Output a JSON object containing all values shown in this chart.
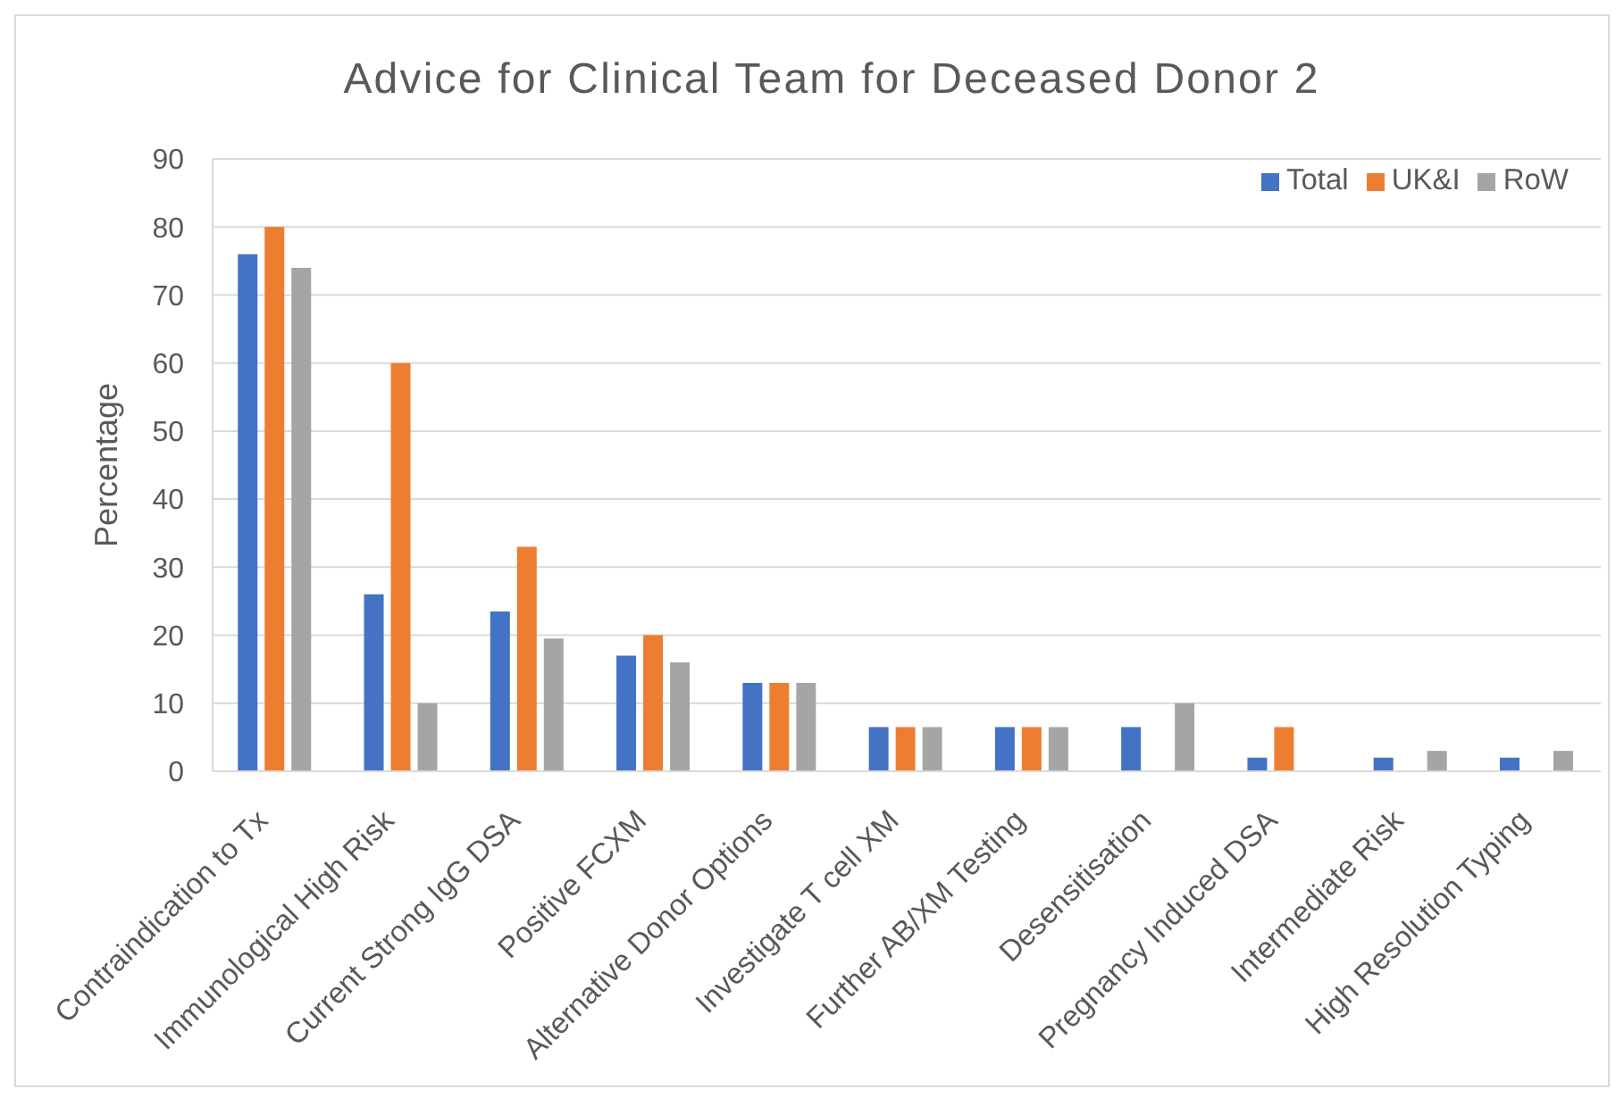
{
  "chart_data": {
    "type": "bar",
    "title": "Advice for Clinical Team for Deceased Donor 2",
    "ylabel": "Percentage",
    "categories": [
      "Contraindication to Tx",
      "Immunological High Risk",
      "Current Strong IgG DSA",
      "Positive FCXM",
      "Alternative Donor Options",
      "Investigate T cell XM",
      "Further AB/XM Testing",
      "Desensitisation",
      "Pregnancy Induced DSA",
      "Intermediate Risk",
      "High Resolution Typing"
    ],
    "series": [
      {
        "name": "Total",
        "color": "#4472c4",
        "values": [
          76,
          26,
          23.5,
          17,
          13,
          6.5,
          6.5,
          6.5,
          2,
          2,
          2
        ]
      },
      {
        "name": "UK&I",
        "color": "#ed7d31",
        "values": [
          80,
          60,
          33,
          20,
          13,
          6.5,
          6.5,
          0,
          6.5,
          0,
          0
        ]
      },
      {
        "name": "RoW",
        "color": "#a5a5a5",
        "values": [
          74,
          10,
          19.5,
          16,
          13,
          6.5,
          6.5,
          10,
          0,
          3,
          3
        ]
      }
    ],
    "ylim": [
      0,
      90
    ],
    "yticks": [
      0,
      10,
      20,
      30,
      40,
      50,
      60,
      70,
      80,
      90
    ],
    "grid": "y",
    "legend": "top right"
  }
}
